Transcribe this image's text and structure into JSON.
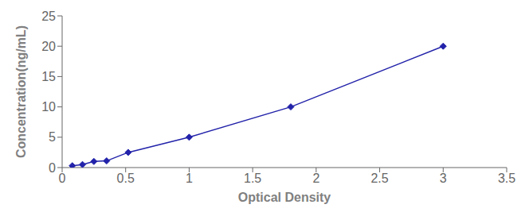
{
  "chart_data": {
    "type": "line",
    "x": [
      0.08,
      0.16,
      0.25,
      0.35,
      0.52,
      1.0,
      1.8,
      3.0
    ],
    "values": [
      0.3,
      0.5,
      1.0,
      1.1,
      2.5,
      5.0,
      10.0,
      20.0
    ],
    "xlabel": "Optical Density",
    "ylabel": "Concentration(ng/mL)",
    "xlim": [
      0,
      3.5
    ],
    "ylim": [
      0,
      25
    ],
    "xticks": [
      0,
      0.5,
      1,
      1.5,
      2,
      2.5,
      3,
      3.5
    ],
    "yticks": [
      0,
      5,
      10,
      15,
      20,
      25
    ],
    "color": "#2222aa",
    "marker": "diamond",
    "grid": false
  }
}
